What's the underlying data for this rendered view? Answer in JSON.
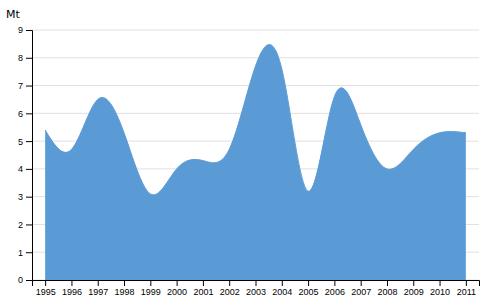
{
  "chart_data": {
    "type": "area",
    "ylabel": "Mt",
    "x": [
      1995,
      1996,
      1997,
      1998,
      1999,
      2000,
      2001,
      2002,
      2003,
      2004,
      2005,
      2006,
      2007,
      2008,
      2009,
      2010,
      2011
    ],
    "values": [
      5.4,
      4.7,
      6.5,
      5.3,
      3.1,
      4.0,
      4.3,
      4.7,
      7.7,
      7.6,
      3.2,
      6.6,
      5.6,
      4.0,
      4.7,
      5.3,
      5.3
    ],
    "color": "#5b9bd5",
    "xlim": [
      1994.5,
      2011.5
    ],
    "xticks": [
      1995,
      1996,
      1997,
      1998,
      1999,
      2000,
      2001,
      2002,
      2003,
      2004,
      2005,
      2006,
      2007,
      2008,
      2009,
      2010,
      2011
    ],
    "ylim": [
      0,
      9
    ],
    "yticks": [
      0,
      1,
      2,
      3,
      4,
      5,
      6,
      7,
      8,
      9
    ],
    "grid": true
  }
}
